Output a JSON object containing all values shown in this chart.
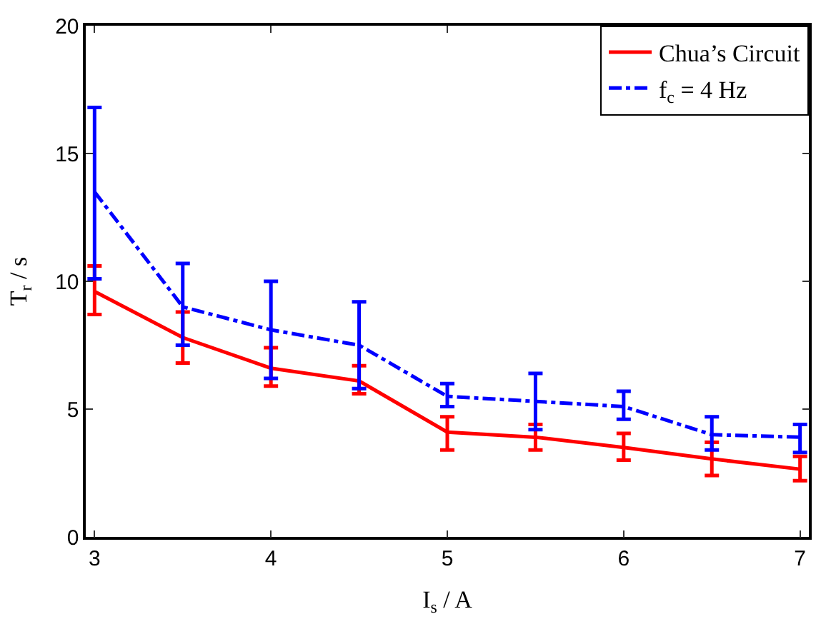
{
  "chart_data": {
    "type": "line",
    "xlabel": "I$_{s}$ / A",
    "ylabel": "T$_{r}$ / s",
    "x": [
      3,
      3.5,
      4,
      4.5,
      5,
      5.5,
      6,
      6.5,
      7
    ],
    "series": [
      {
        "name": "Chua’s Circuit",
        "color": "#ff0000",
        "line_style": "solid",
        "values": [
          9.6,
          7.8,
          6.6,
          6.1,
          4.1,
          3.9,
          3.5,
          3.05,
          2.65
        ],
        "errors": [
          [
            8.7,
            10.6
          ],
          [
            6.8,
            8.8
          ],
          [
            5.9,
            7.4
          ],
          [
            5.6,
            6.7
          ],
          [
            3.4,
            4.7
          ],
          [
            3.4,
            4.4
          ],
          [
            3.0,
            4.05
          ],
          [
            2.4,
            3.7
          ],
          [
            2.2,
            3.15
          ]
        ]
      },
      {
        "name": "f$_{c}$ = 4 Hz",
        "color": "#0000ff",
        "line_style": "dashdot",
        "values": [
          13.5,
          9.0,
          8.1,
          7.5,
          5.5,
          5.3,
          5.1,
          4.0,
          3.9
        ],
        "errors": [
          [
            10.1,
            16.8
          ],
          [
            7.5,
            10.7
          ],
          [
            6.2,
            10.0
          ],
          [
            5.8,
            9.2
          ],
          [
            5.1,
            6.0
          ],
          [
            4.2,
            6.4
          ],
          [
            4.6,
            5.7
          ],
          [
            3.4,
            4.7
          ],
          [
            3.3,
            4.4
          ]
        ]
      }
    ],
    "xlim": [
      2.95,
      7.05
    ],
    "ylim": [
      0,
      20
    ],
    "xticks": [
      3,
      4,
      5,
      6,
      7
    ],
    "yticks": [
      0,
      5,
      10,
      15,
      20
    ],
    "legend": "top right",
    "marker": "none"
  }
}
